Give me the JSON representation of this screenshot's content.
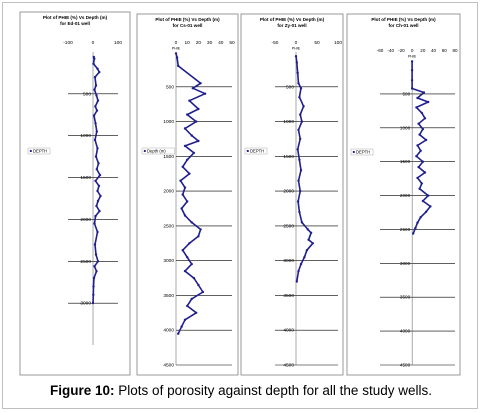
{
  "caption": {
    "label": "Figure 10:",
    "text": " Plots of porosity against depth for all the study wells."
  },
  "colors": {
    "series": "#1f1f8f",
    "grid": "#000000",
    "panel_border": "#7f7f7f"
  },
  "chart_data": [
    {
      "type": "scatter",
      "title_line1": "Plot of PHIE (%) Vs Depth (m)",
      "title_line2": "for Ed-01 well",
      "x_tick_labels": [
        "-100",
        "0",
        "100"
      ],
      "x_top_label": "",
      "xlim": [
        -100,
        100
      ],
      "ylim": [
        0,
        3500
      ],
      "y_ticks": [
        500,
        1000,
        1500,
        2000,
        2500,
        3000
      ],
      "y_tick_labels": [
        "500",
        "1000",
        "1500",
        "2000",
        "2500",
        "3000"
      ],
      "legend": "DEPTH",
      "legend_position": "left",
      "points": [
        [
          3,
          60
        ],
        [
          5,
          80
        ],
        [
          2,
          140
        ],
        [
          18,
          200
        ],
        [
          25,
          240
        ],
        [
          8,
          300
        ],
        [
          12,
          400
        ],
        [
          6,
          450
        ],
        [
          14,
          520
        ],
        [
          20,
          580
        ],
        [
          9,
          650
        ],
        [
          16,
          700
        ],
        [
          4,
          760
        ],
        [
          10,
          850
        ],
        [
          15,
          950
        ],
        [
          8,
          1050
        ],
        [
          18,
          1150
        ],
        [
          12,
          1250
        ],
        [
          22,
          1330
        ],
        [
          15,
          1400
        ],
        [
          28,
          1470
        ],
        [
          10,
          1540
        ],
        [
          24,
          1600
        ],
        [
          18,
          1660
        ],
        [
          30,
          1720
        ],
        [
          20,
          1780
        ],
        [
          14,
          1840
        ],
        [
          26,
          1900
        ],
        [
          10,
          1960
        ],
        [
          6,
          2050
        ],
        [
          18,
          2150
        ],
        [
          8,
          2300
        ],
        [
          12,
          2420
        ],
        [
          20,
          2500
        ],
        [
          6,
          2560
        ],
        [
          14,
          2620
        ],
        [
          4,
          2700
        ],
        [
          2,
          2800
        ],
        [
          1,
          2900
        ],
        [
          0,
          3000
        ]
      ]
    },
    {
      "type": "scatter",
      "title_line1": "Plot of PHIE (%) Vs Depth (m)",
      "title_line2": "for Cs-01 well",
      "x_tick_labels": [
        "0",
        "10",
        "20",
        "30",
        "40",
        "50"
      ],
      "x_top_label": "PHIE",
      "xlim": [
        0,
        50
      ],
      "ylim": [
        0,
        4500
      ],
      "y_ticks": [
        500,
        1000,
        1500,
        2000,
        2500,
        3000,
        3500,
        4000,
        4500
      ],
      "y_tick_labels": [
        "500",
        "1000",
        "1500",
        "2000",
        "2500",
        "3000",
        "3500",
        "4000",
        "4500"
      ],
      "legend": "Depth (m)",
      "legend_position": "left",
      "points": [
        [
          0,
          20
        ],
        [
          1,
          80
        ],
        [
          2,
          200
        ],
        [
          22,
          450
        ],
        [
          15,
          520
        ],
        [
          26,
          600
        ],
        [
          12,
          700
        ],
        [
          20,
          820
        ],
        [
          10,
          900
        ],
        [
          18,
          1000
        ],
        [
          8,
          1100
        ],
        [
          14,
          1200
        ],
        [
          20,
          1280
        ],
        [
          8,
          1350
        ],
        [
          16,
          1450
        ],
        [
          10,
          1550
        ],
        [
          6,
          1650
        ],
        [
          12,
          1750
        ],
        [
          4,
          1850
        ],
        [
          8,
          1950
        ],
        [
          6,
          2050
        ],
        [
          10,
          2150
        ],
        [
          5,
          2250
        ],
        [
          8,
          2350
        ],
        [
          14,
          2450
        ],
        [
          22,
          2550
        ],
        [
          20,
          2650
        ],
        [
          12,
          2750
        ],
        [
          6,
          2850
        ],
        [
          10,
          2950
        ],
        [
          14,
          3050
        ],
        [
          8,
          3150
        ],
        [
          16,
          3250
        ],
        [
          20,
          3350
        ],
        [
          24,
          3450
        ],
        [
          14,
          3550
        ],
        [
          10,
          3650
        ],
        [
          18,
          3750
        ],
        [
          8,
          3850
        ],
        [
          5,
          3950
        ],
        [
          2,
          4050
        ]
      ]
    },
    {
      "type": "scatter",
      "title_line1": "Plot of PHIE (%) Vs Depth (m)",
      "title_line2": "for Zy-01 well",
      "x_tick_labels": [
        "-50",
        "0",
        "50",
        "100"
      ],
      "x_top_label": "PHIE",
      "xlim": [
        -50,
        100
      ],
      "ylim": [
        0,
        4500
      ],
      "y_ticks": [
        500,
        1000,
        1500,
        2000,
        2500,
        3000,
        3500,
        4000,
        4500
      ],
      "y_tick_labels": [
        "500",
        "1000",
        "1500",
        "2000",
        "2500",
        "3000",
        "3500",
        "4000",
        "4500"
      ],
      "legend": "DEPTH",
      "legend_position": "left",
      "points": [
        [
          0,
          60
        ],
        [
          2,
          150
        ],
        [
          4,
          300
        ],
        [
          6,
          450
        ],
        [
          12,
          520
        ],
        [
          8,
          650
        ],
        [
          18,
          780
        ],
        [
          10,
          900
        ],
        [
          14,
          1000
        ],
        [
          6,
          1120
        ],
        [
          10,
          1250
        ],
        [
          4,
          1400
        ],
        [
          8,
          1550
        ],
        [
          12,
          1700
        ],
        [
          6,
          1850
        ],
        [
          10,
          2000
        ],
        [
          5,
          2150
        ],
        [
          8,
          2300
        ],
        [
          14,
          2450
        ],
        [
          28,
          2550
        ],
        [
          36,
          2600
        ],
        [
          30,
          2700
        ],
        [
          40,
          2750
        ],
        [
          26,
          2850
        ],
        [
          20,
          2950
        ],
        [
          12,
          3050
        ],
        [
          6,
          3150
        ],
        [
          2,
          3300
        ]
      ]
    },
    {
      "type": "scatter",
      "title_line1": "Plot of PHIE (%) Vs Depth (m)",
      "title_line2": "for Ch-01 well",
      "x_tick_labels": [
        "-60",
        "-40",
        "-20",
        "0",
        "20",
        "40",
        "60",
        "80"
      ],
      "x_top_label": "PHIE",
      "xlim": [
        -60,
        80
      ],
      "ylim": [
        0,
        4500
      ],
      "y_ticks": [
        500,
        1000,
        1500,
        2000,
        2500,
        3000,
        3500,
        4000,
        4500
      ],
      "y_tick_labels": [
        "500",
        "1000",
        "1500",
        "2000",
        "2500",
        "3000",
        "3500",
        "4000",
        "4500"
      ],
      "legend": "DEPTH",
      "legend_position": "left",
      "points": [
        [
          0,
          20
        ],
        [
          0,
          150
        ],
        [
          0,
          300
        ],
        [
          0,
          420
        ],
        [
          22,
          480
        ],
        [
          10,
          560
        ],
        [
          30,
          620
        ],
        [
          8,
          700
        ],
        [
          18,
          780
        ],
        [
          24,
          860
        ],
        [
          12,
          940
        ],
        [
          20,
          1020
        ],
        [
          14,
          1100
        ],
        [
          26,
          1180
        ],
        [
          10,
          1260
        ],
        [
          16,
          1340
        ],
        [
          8,
          1420
        ],
        [
          20,
          1500
        ],
        [
          12,
          1580
        ],
        [
          24,
          1660
        ],
        [
          10,
          1740
        ],
        [
          18,
          1820
        ],
        [
          14,
          1900
        ],
        [
          30,
          2000
        ],
        [
          20,
          2080
        ],
        [
          34,
          2160
        ],
        [
          26,
          2240
        ],
        [
          16,
          2320
        ],
        [
          10,
          2400
        ],
        [
          6,
          2480
        ],
        [
          2,
          2560
        ]
      ]
    }
  ]
}
